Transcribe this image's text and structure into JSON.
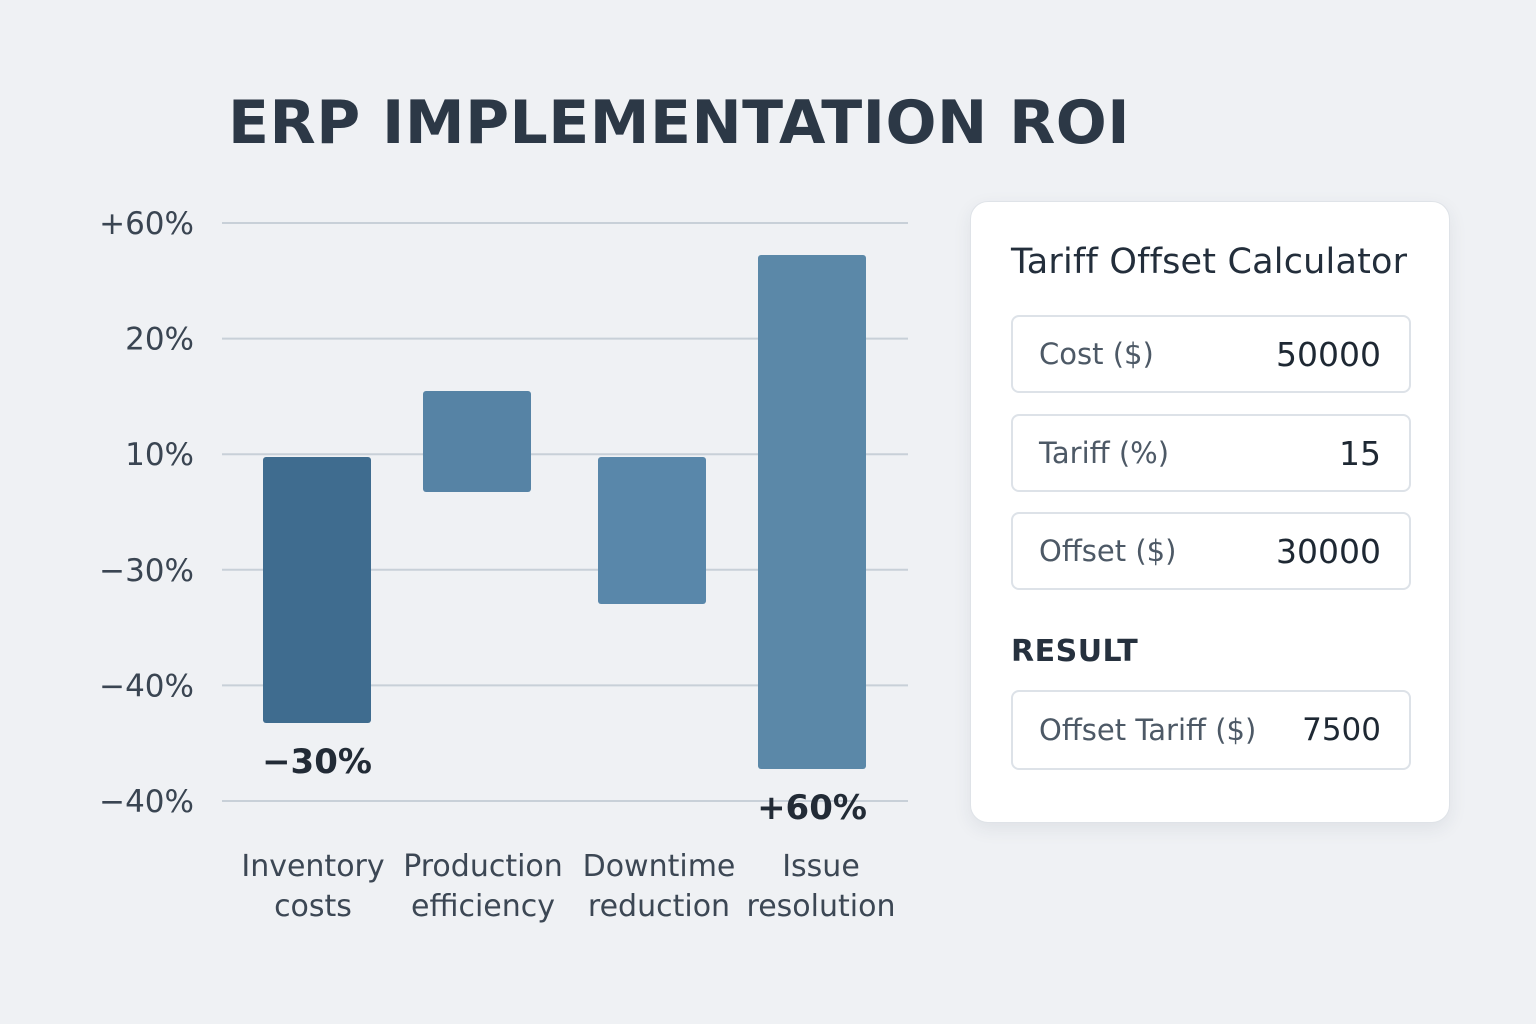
{
  "title": "ERP IMPLEMENTATION ROI",
  "chart_data": {
    "type": "bar",
    "chart_subtype": "floating-bar",
    "title": "ERP IMPLEMENTATION ROI",
    "xlabel": "",
    "ylabel": "",
    "grid": true,
    "y_tick_labels": [
      "+60%",
      "20%",
      "10%",
      "−30%",
      "−40%",
      "−40%"
    ],
    "categories": [
      [
        "Inventory",
        "costs"
      ],
      [
        "Production",
        "efficiency"
      ],
      [
        "Downtime",
        "reduction"
      ],
      [
        "Issue",
        "resolution"
      ]
    ],
    "bars": [
      {
        "category": "Inventory costs",
        "start": 10,
        "end": -40,
        "label": "−30%",
        "color": "#3f6c8f"
      },
      {
        "category": "Production efficiency",
        "start": 16,
        "end": 7,
        "label": "",
        "color": "#5683a5"
      },
      {
        "category": "Downtime reduction",
        "start": 10,
        "end": -38,
        "label": "",
        "color": "#5987aa"
      },
      {
        "category": "Issue resolution",
        "start": 56,
        "end": -40,
        "label": "+60%",
        "color": "#5b88a8"
      }
    ],
    "colors": {
      "grid": "#c8d0d8",
      "tick_text": "#3a4552",
      "label_text": "#222b36"
    }
  },
  "calculator": {
    "title": "Tariff Offset Calculator",
    "fields": [
      {
        "label": "Cost ($)",
        "value": "50000"
      },
      {
        "label": "Tariff (%)",
        "value": "15"
      },
      {
        "label": "Offset ($)",
        "value": "30000"
      }
    ],
    "result_heading": "RESULT",
    "result": {
      "label": "Offset Tariff ($)",
      "value": "7500"
    }
  }
}
